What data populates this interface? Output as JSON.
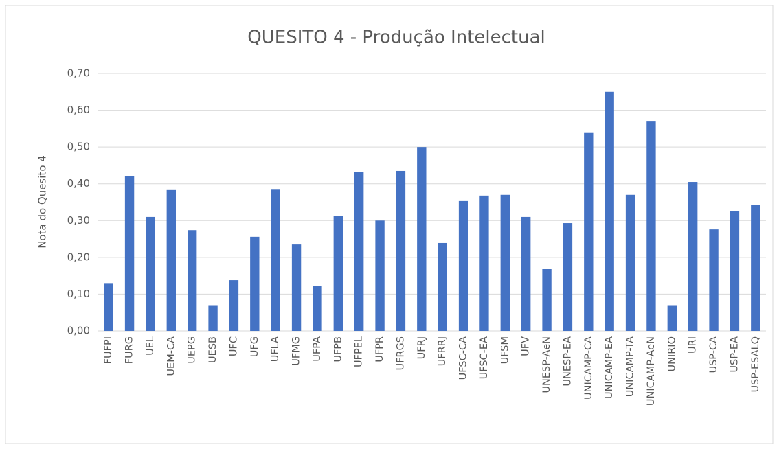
{
  "chart_data": {
    "type": "bar",
    "title": "QUESITO 4 - Produção Intelectual",
    "y_label": "Nota do Quesito 4",
    "categories": [
      "FUFPI",
      "FURG",
      "UEL",
      "UEM-CA",
      "UEPG",
      "UESB",
      "UFC",
      "UFG",
      "UFLA",
      "UFMG",
      "UFPA",
      "UFPB",
      "UFPEL",
      "UFPR",
      "UFRGS",
      "UFRJ",
      "UFRRJ",
      "UFSC-CA",
      "UFSC-EA",
      "UFSM",
      "UFV",
      "UNESP-AeN",
      "UNESP-EA",
      "UNICAMP-CA",
      "UNICAMP-EA",
      "UNICAMP-TA",
      "UNICAMP-AeN",
      "UNIRIO",
      "URI",
      "USP-CA",
      "USP-EA",
      "USP-ESALQ"
    ],
    "values": [
      0.13,
      0.42,
      0.31,
      0.383,
      0.274,
      0.07,
      0.138,
      0.256,
      0.384,
      0.235,
      0.123,
      0.312,
      0.433,
      0.3,
      0.435,
      0.5,
      0.239,
      0.353,
      0.368,
      0.37,
      0.31,
      0.168,
      0.293,
      0.54,
      0.65,
      0.37,
      0.571,
      0.07,
      0.405,
      0.276,
      0.325,
      0.343
    ],
    "color": "#4472c4",
    "ylim": [
      0,
      0.7
    ],
    "yticks": [
      {
        "value": 0,
        "label": "0,00"
      },
      {
        "value": 0.1,
        "label": "0,10"
      },
      {
        "value": 0.2,
        "label": "0,20"
      },
      {
        "value": 0.3,
        "label": "0,30"
      },
      {
        "value": 0.4,
        "label": "0,40"
      },
      {
        "value": 0.5,
        "label": "0,50"
      },
      {
        "value": 0.6,
        "label": "0,60"
      },
      {
        "value": 0.7,
        "label": "0,70"
      }
    ],
    "grid": true
  }
}
